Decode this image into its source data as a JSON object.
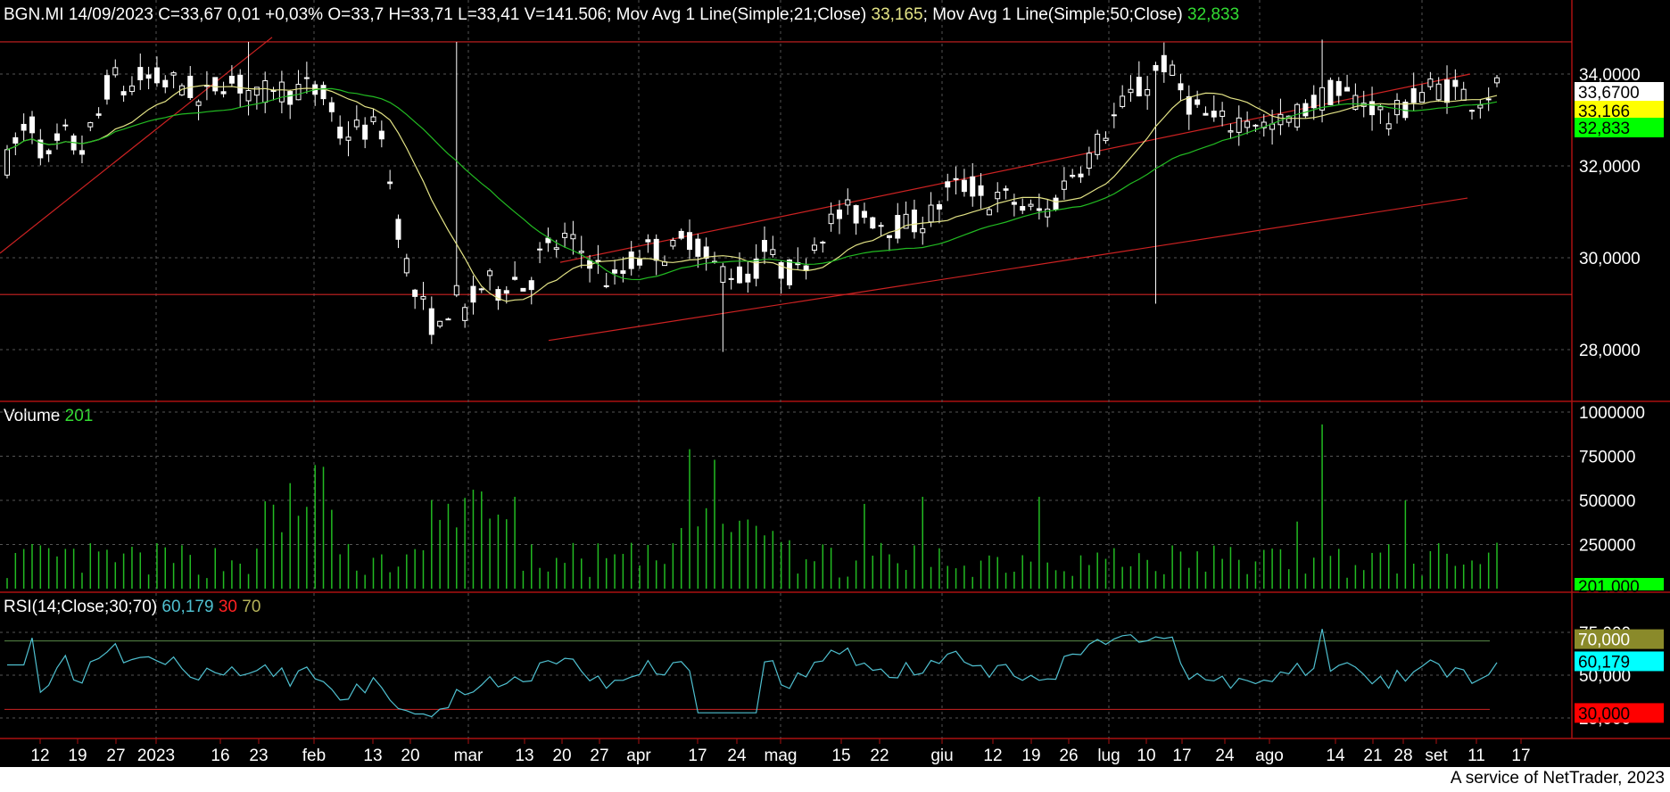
{
  "header": {
    "ticker": "BGN.MI 14/09/2023 C=33,67 0,01 +0,03% O=33,7 H=33,71 L=33,41 V=141.506",
    "ma21_label": "Mov Avg 1 Line(Simple;21;Close)",
    "ma21_value": "33,165",
    "ma50_label": "Mov Avg 1 Line(Simple;50;Close)",
    "ma50_value": "32,833"
  },
  "volume_panel": {
    "label": "Volume",
    "value": "201",
    "tag": "201.000"
  },
  "rsi_panel": {
    "label": "RSI(14;Close;30;70)",
    "value": "60,179",
    "low": "30",
    "high": "70"
  },
  "price_tags": {
    "last": "33,6700",
    "ma21": "33,166",
    "ma50": "32,833"
  },
  "rsi_tags": {
    "high": "70,000",
    "value": "60,179",
    "low": "30,000"
  },
  "footer": {
    "credit": "A service of NetTrader, 2023"
  },
  "colors": {
    "background": "#000000",
    "candle": "#ffffff",
    "ma21": "#e4e486",
    "ma50": "#22bb22",
    "trend": "#cc2222",
    "volume": "#22bb22",
    "rsi": "#4fc0d0",
    "grid": "#555555"
  },
  "chart_data": [
    {
      "type": "candlestick",
      "title": "BGN.MI",
      "x_ticks": [
        "12",
        "19",
        "27",
        "2023",
        "16",
        "23",
        "feb",
        "13",
        "20",
        "mar",
        "13",
        "20",
        "27",
        "apr",
        "17",
        "24",
        "mag",
        "15",
        "22",
        "giu",
        "12",
        "19",
        "26",
        "lug",
        "10",
        "17",
        "24",
        "ago",
        "14",
        "21",
        "28",
        "set",
        "11",
        "17"
      ],
      "y_ticks": [
        "34,0000",
        "32,0000",
        "30,0000",
        "28,0000"
      ],
      "ylim": [
        26.7,
        35.7
      ],
      "grid": true,
      "series": [
        {
          "name": "Mov Avg 1 Line(Simple;21;Close)",
          "last": 33.165
        },
        {
          "name": "Mov Avg 1 Line(Simple;50;Close)",
          "last": 32.833
        }
      ],
      "horizontal_levels": [
        34.7,
        29.2
      ],
      "last_close": 33.67
    },
    {
      "type": "bar",
      "title": "Volume",
      "y_ticks": [
        "1000000",
        "750000",
        "500000",
        "250000"
      ],
      "ylim": [
        0,
        1000000
      ],
      "last": 201000
    },
    {
      "type": "line",
      "title": "RSI(14;Close;30;70)",
      "y_ticks": [
        "75,000",
        "50,000",
        "25,000"
      ],
      "ylim": [
        15,
        80
      ],
      "levels": [
        70,
        30
      ],
      "last": 60.179
    }
  ]
}
